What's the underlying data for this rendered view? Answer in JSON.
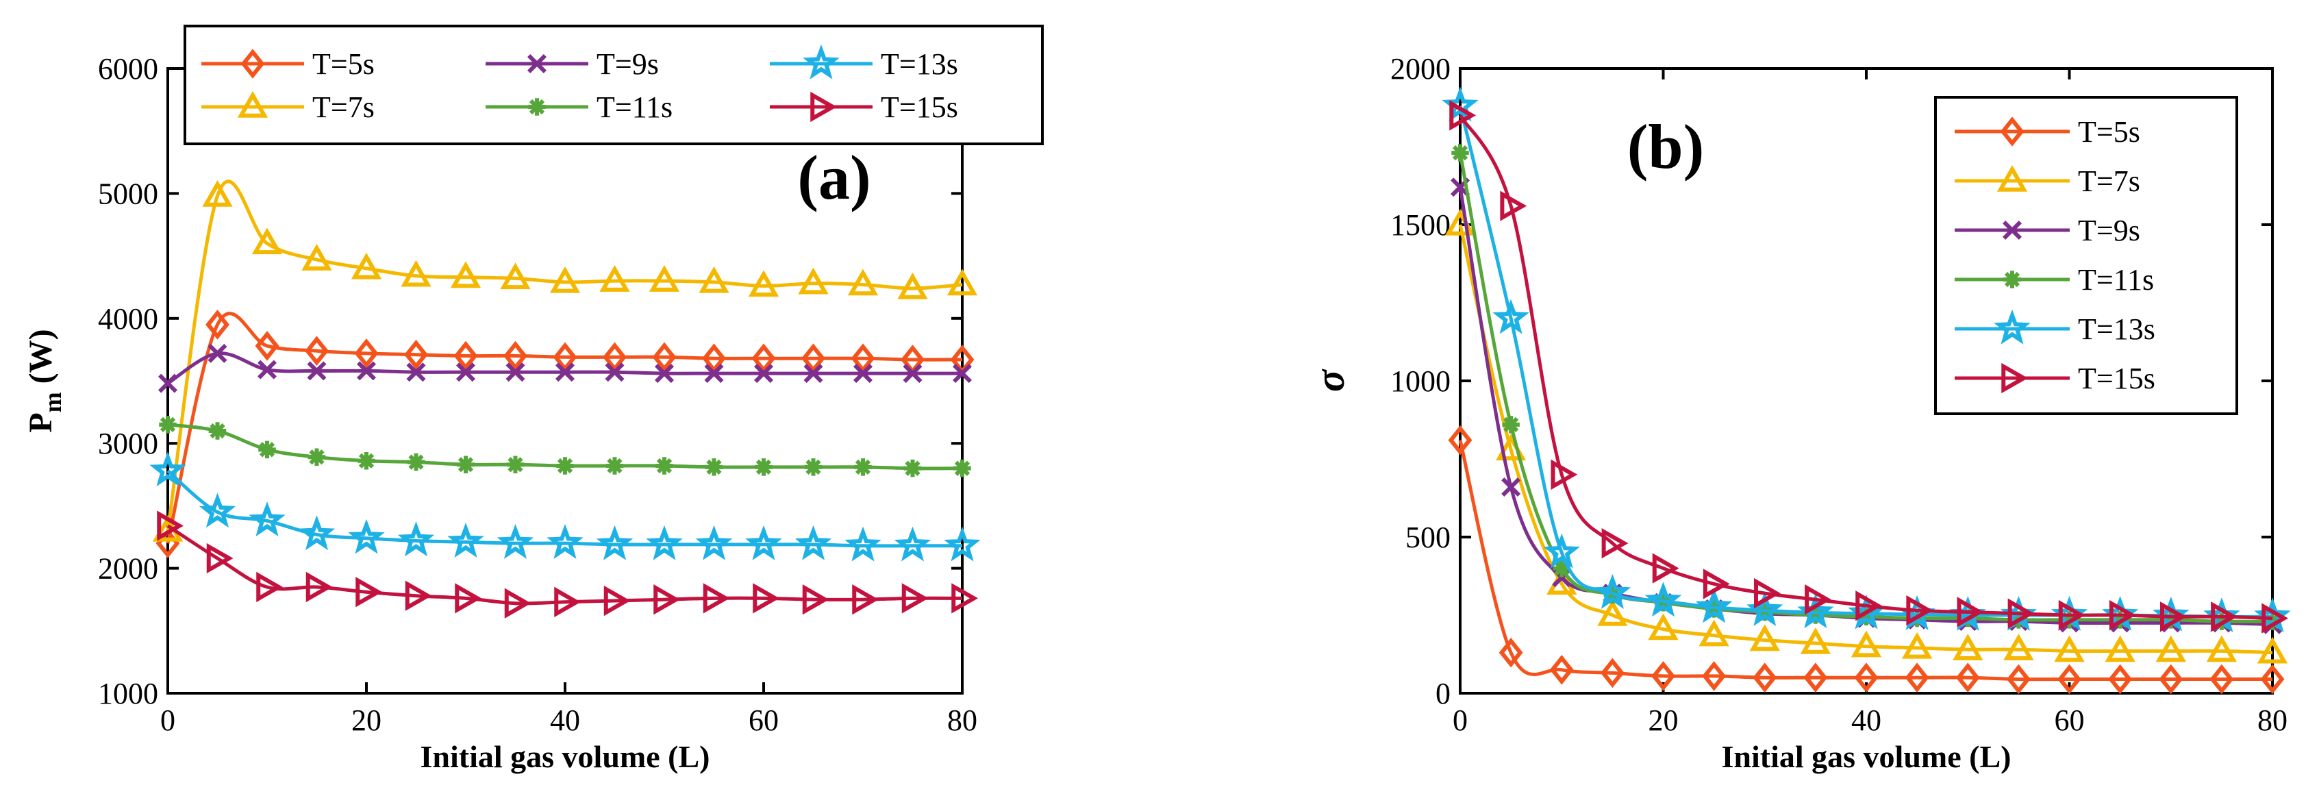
{
  "chart_data": [
    {
      "type": "line",
      "panel_label": "(a)",
      "xlabel": "Initial gas volume (L)",
      "ylabel_main": "P",
      "ylabel_sub": "m",
      "ylabel_unit": " (W)",
      "xlim": [
        0,
        80
      ],
      "ylim": [
        1000,
        6000
      ],
      "xticks": [
        0,
        20,
        40,
        60,
        80
      ],
      "yticks": [
        1000,
        2000,
        3000,
        4000,
        5000,
        6000
      ],
      "grid": false,
      "legend_position": "top",
      "x": [
        0,
        5,
        10,
        15,
        20,
        25,
        30,
        35,
        40,
        45,
        50,
        55,
        60,
        65,
        70,
        75,
        80
      ],
      "series": [
        {
          "name": "T=5s",
          "color": "#F4531C",
          "marker": "diamond",
          "values": [
            2200,
            3950,
            3780,
            3740,
            3720,
            3710,
            3700,
            3700,
            3690,
            3690,
            3690,
            3680,
            3680,
            3680,
            3680,
            3670,
            3670
          ]
        },
        {
          "name": "T=7s",
          "color": "#F5B800",
          "marker": "triangle-up",
          "values": [
            2300,
            4980,
            4600,
            4470,
            4400,
            4340,
            4330,
            4320,
            4290,
            4300,
            4300,
            4290,
            4260,
            4280,
            4270,
            4240,
            4270
          ]
        },
        {
          "name": "T=9s",
          "color": "#7E2F8E",
          "marker": "x",
          "values": [
            3480,
            3720,
            3590,
            3580,
            3580,
            3570,
            3570,
            3570,
            3570,
            3570,
            3560,
            3560,
            3560,
            3560,
            3560,
            3560,
            3560
          ]
        },
        {
          "name": "T=11s",
          "color": "#56A63A",
          "marker": "asterisk",
          "values": [
            3150,
            3100,
            2950,
            2890,
            2860,
            2850,
            2830,
            2830,
            2820,
            2820,
            2820,
            2810,
            2810,
            2810,
            2810,
            2800,
            2800
          ]
        },
        {
          "name": "T=13s",
          "color": "#1DB1E6",
          "marker": "star",
          "values": [
            2780,
            2450,
            2380,
            2270,
            2240,
            2220,
            2210,
            2200,
            2200,
            2190,
            2190,
            2190,
            2190,
            2190,
            2180,
            2180,
            2180
          ]
        },
        {
          "name": "T=15s",
          "color": "#C4123F",
          "marker": "triangle-right",
          "values": [
            2340,
            2080,
            1850,
            1850,
            1810,
            1780,
            1760,
            1720,
            1730,
            1740,
            1750,
            1760,
            1760,
            1750,
            1750,
            1760,
            1760
          ]
        }
      ]
    },
    {
      "type": "line",
      "panel_label": "(b)",
      "xlabel": "Initial gas volume (L)",
      "ylabel": "σ",
      "xlim": [
        0,
        80
      ],
      "ylim": [
        0,
        2000
      ],
      "xticks": [
        0,
        20,
        40,
        60,
        80
      ],
      "yticks": [
        0,
        500,
        1000,
        1500,
        2000
      ],
      "grid": false,
      "legend_position": "top-right",
      "series": [
        {
          "name": "T=5s",
          "color": "#F4531C",
          "marker": "diamond",
          "x": [
            0,
            5,
            10,
            15,
            20,
            25,
            30,
            35,
            40,
            45,
            50,
            55,
            60,
            65,
            70,
            75,
            80
          ],
          "values": [
            810,
            130,
            75,
            65,
            55,
            55,
            50,
            50,
            50,
            50,
            50,
            45,
            45,
            45,
            45,
            45,
            45
          ]
        },
        {
          "name": "T=7s",
          "color": "#F5B800",
          "marker": "triangle-up",
          "x": [
            0,
            5,
            10,
            15,
            20,
            25,
            30,
            35,
            40,
            45,
            50,
            55,
            60,
            65,
            70,
            75,
            80
          ],
          "values": [
            1500,
            780,
            350,
            250,
            205,
            185,
            170,
            160,
            150,
            145,
            140,
            140,
            135,
            135,
            135,
            135,
            130
          ]
        },
        {
          "name": "T=9s",
          "color": "#7E2F8E",
          "marker": "x",
          "x": [
            0,
            5,
            10,
            15,
            20,
            25,
            30,
            35,
            40,
            45,
            50,
            55,
            60,
            65,
            70,
            75,
            80
          ],
          "values": [
            1620,
            660,
            370,
            320,
            290,
            270,
            255,
            250,
            240,
            235,
            230,
            230,
            225,
            225,
            225,
            225,
            220
          ]
        },
        {
          "name": "T=11s",
          "color": "#56A63A",
          "marker": "asterisk",
          "x": [
            0,
            5,
            10,
            15,
            20,
            25,
            30,
            35,
            40,
            45,
            50,
            55,
            60,
            65,
            70,
            75,
            80
          ],
          "values": [
            1730,
            860,
            400,
            315,
            290,
            270,
            260,
            250,
            245,
            240,
            240,
            235,
            235,
            235,
            235,
            230,
            230
          ]
        },
        {
          "name": "T=13s",
          "color": "#1DB1E6",
          "marker": "star",
          "x": [
            0,
            5,
            10,
            15,
            20,
            25,
            30,
            35,
            40,
            45,
            50,
            55,
            60,
            65,
            70,
            75,
            80
          ],
          "values": [
            1880,
            1200,
            450,
            320,
            295,
            275,
            265,
            258,
            255,
            252,
            250,
            250,
            250,
            250,
            248,
            245,
            245
          ]
        },
        {
          "name": "T=15s",
          "color": "#C4123F",
          "marker": "triangle-right",
          "x": [
            0,
            5,
            10,
            15,
            20,
            25,
            30,
            35,
            40,
            45,
            50,
            55,
            60,
            65,
            70,
            75,
            80
          ],
          "values": [
            1850,
            1560,
            700,
            480,
            400,
            350,
            320,
            300,
            280,
            265,
            260,
            255,
            250,
            250,
            245,
            245,
            240
          ]
        }
      ]
    }
  ]
}
